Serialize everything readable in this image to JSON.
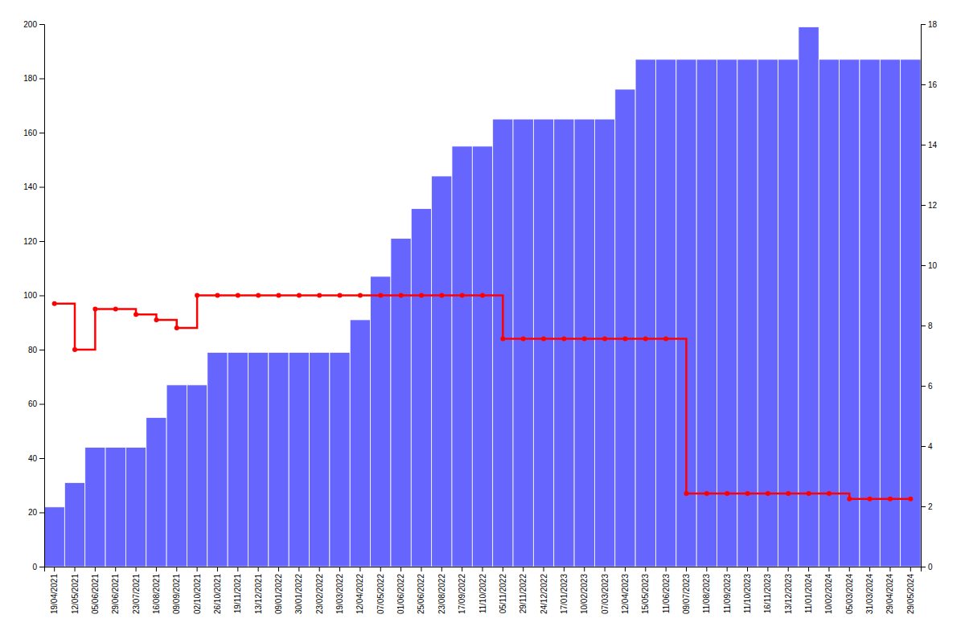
{
  "chart_data": {
    "type": "bar",
    "categories": [
      "19/04/2021",
      "12/05/2021",
      "05/06/2021",
      "29/06/2021",
      "23/07/2021",
      "16/08/2021",
      "09/09/2021",
      "02/10/2021",
      "26/10/2021",
      "19/11/2021",
      "13/12/2021",
      "09/01/2022",
      "30/01/2022",
      "23/02/2022",
      "19/03/2022",
      "12/04/2022",
      "07/05/2022",
      "01/06/2022",
      "25/06/2022",
      "23/08/2022",
      "17/09/2022",
      "11/10/2022",
      "05/11/2022",
      "29/11/2022",
      "24/12/2022",
      "17/01/2023",
      "10/02/2023",
      "07/03/2023",
      "12/04/2023",
      "15/05/2023",
      "11/06/2023",
      "09/07/2023",
      "11/08/2023",
      "11/09/2023",
      "11/10/2023",
      "16/11/2023",
      "13/12/2023",
      "11/01/2024",
      "10/02/2024",
      "05/03/2024",
      "31/03/2024",
      "29/04/2024",
      "29/05/2024"
    ],
    "series": [
      {
        "type": "bar",
        "color": "#6666ff",
        "values": [
          22,
          31,
          44,
          44,
          44,
          55,
          67,
          67,
          79,
          79,
          79,
          79,
          79,
          79,
          79,
          91,
          107,
          121,
          132,
          144,
          155,
          155,
          165,
          165,
          165,
          165,
          165,
          165,
          176,
          187,
          187,
          187,
          187,
          187,
          187,
          187,
          187,
          199,
          187,
          187,
          187,
          187,
          187
        ]
      },
      {
        "type": "line",
        "color": "#ff0000",
        "line_style": "step",
        "marker": "circle",
        "values": [
          97,
          80,
          95,
          95,
          93,
          91,
          88,
          100,
          100,
          100,
          100,
          100,
          100,
          100,
          100,
          100,
          100,
          100,
          100,
          100,
          100,
          100,
          84,
          84,
          84,
          84,
          84,
          84,
          84,
          84,
          84,
          27,
          27,
          27,
          27,
          27,
          27,
          27,
          27,
          25,
          25,
          25,
          25
        ]
      }
    ],
    "ylim": [
      0,
      200
    ],
    "yticks": [
      0,
      20,
      40,
      60,
      80,
      100,
      120,
      140,
      160,
      180,
      200
    ],
    "y2lim": [
      0,
      18
    ],
    "y2ticks": [
      0,
      2,
      4,
      6,
      8,
      10,
      12,
      14,
      16,
      18
    ],
    "grid": false
  }
}
